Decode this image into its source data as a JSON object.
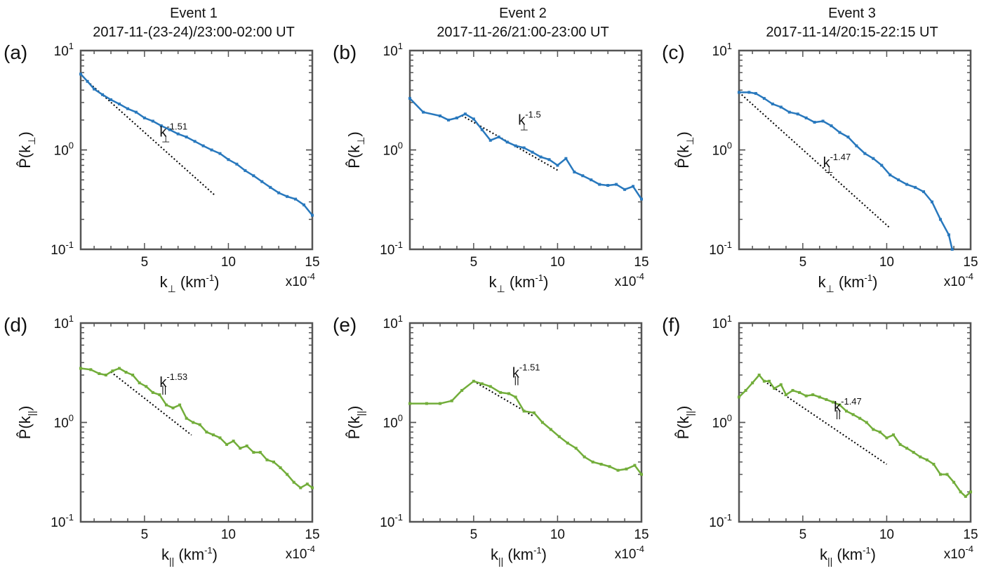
{
  "events": [
    {
      "title": "Event 1",
      "subtitle": "2017-11-(23-24)/23:00-02:00 UT"
    },
    {
      "title": "Event 2",
      "subtitle": "2017-11-26/21:00-23:00 UT"
    },
    {
      "title": "Event 3",
      "subtitle": "2017-11-14/20:15-22:15 UT"
    }
  ],
  "colors": {
    "perp_line": "#2878bd",
    "par_line": "#72ad3a",
    "fit_line": "#000000",
    "axes": "#555555"
  },
  "chart_data": [
    {
      "type": "line",
      "label": "(a)",
      "row": "perp",
      "col": 0,
      "xlabel_base": "k",
      "xlabel_sub": "⊥",
      "xlabel_unit": " (km",
      "xlabel_unit_sup": "-1",
      "xlabel_close": ")",
      "ylabel_base": "P̂(k",
      "ylabel_sub": "⊥",
      "ylabel_close": ")",
      "x_multiplier_base": "x10",
      "x_multiplier_exp": "-4",
      "xlim": [
        1.2,
        15
      ],
      "ylim": [
        0.1,
        10
      ],
      "yscale": "log",
      "xticks": [
        5,
        10,
        15
      ],
      "yticks": [
        {
          "base": "10",
          "exp": "-1",
          "v": 0.1
        },
        {
          "base": "10",
          "exp": "0",
          "v": 1
        },
        {
          "base": "10",
          "exp": "1",
          "v": 10
        }
      ],
      "series": [
        {
          "x": [
            1.2,
            1.6,
            2.0,
            2.5,
            3.0,
            3.5,
            4.0,
            4.5,
            5.0,
            5.5,
            6.0,
            6.5,
            7.0,
            7.5,
            8.0,
            8.5,
            9.0,
            9.5,
            10.0,
            10.5,
            11.0,
            11.5,
            12.0,
            12.5,
            13.0,
            13.5,
            14.0,
            14.5,
            15.0
          ],
          "y": [
            5.8,
            4.9,
            4.1,
            3.6,
            3.2,
            2.9,
            2.6,
            2.4,
            2.1,
            1.95,
            1.75,
            1.6,
            1.45,
            1.35,
            1.22,
            1.1,
            1.0,
            0.92,
            0.8,
            0.72,
            0.62,
            0.55,
            0.48,
            0.42,
            0.37,
            0.34,
            0.32,
            0.28,
            0.22
          ]
        }
      ],
      "fit": {
        "exponent": -1.51,
        "x": [
          1.6,
          9.2
        ],
        "label_base": "k",
        "label_sub": "⊥",
        "label_exp": "-1.51"
      }
    },
    {
      "type": "line",
      "label": "(b)",
      "row": "perp",
      "col": 1,
      "xlabel_base": "k",
      "xlabel_sub": "⊥",
      "xlabel_unit": " (km",
      "xlabel_unit_sup": "-1",
      "xlabel_close": ")",
      "ylabel_base": "P̂(k",
      "ylabel_sub": "⊥",
      "ylabel_close": ")",
      "x_multiplier_base": "x10",
      "x_multiplier_exp": "-4",
      "xlim": [
        1.2,
        15
      ],
      "ylim": [
        0.1,
        10
      ],
      "yscale": "log",
      "xticks": [
        5,
        10,
        15
      ],
      "yticks": [
        {
          "base": "10",
          "exp": "-1",
          "v": 0.1
        },
        {
          "base": "10",
          "exp": "0",
          "v": 1
        },
        {
          "base": "10",
          "exp": "1",
          "v": 10
        }
      ],
      "series": [
        {
          "x": [
            1.2,
            2.0,
            3.0,
            3.5,
            4.0,
            4.5,
            5.0,
            5.5,
            6.0,
            6.5,
            7.0,
            7.5,
            8.0,
            8.5,
            9.0,
            9.5,
            10.0,
            10.5,
            11.0,
            11.5,
            12.0,
            12.5,
            13.0,
            13.5,
            14.0,
            14.5,
            15.0
          ],
          "y": [
            3.3,
            2.4,
            2.2,
            2.0,
            2.1,
            2.3,
            2.05,
            1.6,
            1.25,
            1.35,
            1.2,
            1.1,
            1.05,
            0.95,
            0.85,
            0.8,
            0.7,
            0.82,
            0.6,
            0.55,
            0.5,
            0.45,
            0.44,
            0.45,
            0.4,
            0.43,
            0.32
          ]
        }
      ],
      "fit": {
        "exponent": -1.5,
        "x": [
          4.3,
          10.0
        ],
        "label_base": "k",
        "label_sub": "⊥",
        "label_exp": "-1.5"
      }
    },
    {
      "type": "line",
      "label": "(c)",
      "row": "perp",
      "col": 2,
      "xlabel_base": "k",
      "xlabel_sub": "⊥",
      "xlabel_unit": " (km",
      "xlabel_unit_sup": "-1",
      "xlabel_close": ")",
      "ylabel_base": "P̂(k",
      "ylabel_sub": "⊥",
      "ylabel_close": ")",
      "x_multiplier_base": "x10",
      "x_multiplier_exp": "-4",
      "xlim": [
        1.2,
        15
      ],
      "ylim": [
        0.1,
        10
      ],
      "yscale": "log",
      "xticks": [
        5,
        10,
        15
      ],
      "yticks": [
        {
          "base": "10",
          "exp": "-1",
          "v": 0.1
        },
        {
          "base": "10",
          "exp": "0",
          "v": 1
        },
        {
          "base": "10",
          "exp": "1",
          "v": 10
        }
      ],
      "series": [
        {
          "x": [
            1.2,
            1.8,
            2.2,
            2.7,
            3.2,
            3.7,
            4.2,
            4.7,
            5.2,
            5.7,
            6.2,
            6.7,
            7.2,
            7.7,
            8.2,
            8.7,
            9.2,
            9.7,
            10.2,
            10.7,
            11.2,
            11.7,
            12.2,
            12.7,
            13.2,
            13.7,
            13.9
          ],
          "y": [
            3.8,
            3.8,
            3.7,
            3.3,
            2.9,
            2.7,
            2.4,
            2.3,
            2.1,
            1.9,
            1.95,
            1.75,
            1.5,
            1.35,
            1.1,
            0.92,
            0.82,
            0.7,
            0.56,
            0.5,
            0.45,
            0.42,
            0.38,
            0.3,
            0.2,
            0.14,
            0.1
          ]
        }
      ],
      "fit": {
        "exponent": -1.47,
        "x": [
          1.2,
          10.2
        ],
        "label_base": "k",
        "label_sub": "⊥",
        "label_exp": "-1.47"
      }
    },
    {
      "type": "line",
      "label": "(d)",
      "row": "par",
      "col": 0,
      "xlabel_base": "k",
      "xlabel_sub": "||",
      "xlabel_unit": " (km",
      "xlabel_unit_sup": "-1",
      "xlabel_close": ")",
      "ylabel_base": "P̂(k",
      "ylabel_sub": "||",
      "ylabel_close": ")",
      "x_multiplier_base": "x10",
      "x_multiplier_exp": "-4",
      "xlim": [
        1.2,
        15
      ],
      "ylim": [
        0.1,
        10
      ],
      "yscale": "log",
      "xticks": [
        5,
        10,
        15
      ],
      "yticks": [
        {
          "base": "10",
          "exp": "-1",
          "v": 0.1
        },
        {
          "base": "10",
          "exp": "0",
          "v": 1
        },
        {
          "base": "10",
          "exp": "1",
          "v": 10
        }
      ],
      "series": [
        {
          "x": [
            1.2,
            1.8,
            2.3,
            2.7,
            3.1,
            3.5,
            3.9,
            4.3,
            4.7,
            5.1,
            5.5,
            5.9,
            6.3,
            6.7,
            7.1,
            7.5,
            7.9,
            8.3,
            8.7,
            9.1,
            9.5,
            9.9,
            10.3,
            10.7,
            11.1,
            11.5,
            11.9,
            12.3,
            12.7,
            13.1,
            13.5,
            13.9,
            14.3,
            14.7,
            15.0
          ],
          "y": [
            3.5,
            3.4,
            3.1,
            3.0,
            3.3,
            3.5,
            3.2,
            3.0,
            2.5,
            2.3,
            2.0,
            1.9,
            1.5,
            1.4,
            1.5,
            1.1,
            1.0,
            0.95,
            0.8,
            0.75,
            0.7,
            0.6,
            0.65,
            0.55,
            0.58,
            0.5,
            0.5,
            0.42,
            0.4,
            0.35,
            0.3,
            0.25,
            0.22,
            0.24,
            0.22
          ]
        }
      ],
      "fit": {
        "exponent": -1.53,
        "x": [
          3.0,
          7.8
        ],
        "label_base": "k",
        "label_sub": "||",
        "label_exp": "-1.53"
      }
    },
    {
      "type": "line",
      "label": "(e)",
      "row": "par",
      "col": 1,
      "xlabel_base": "k",
      "xlabel_sub": "||",
      "xlabel_unit": " (km",
      "xlabel_unit_sup": "-1",
      "xlabel_close": ")",
      "ylabel_base": "P̂(k",
      "ylabel_sub": "||",
      "ylabel_close": ")",
      "x_multiplier_base": "x10",
      "x_multiplier_exp": "-4",
      "xlim": [
        1.2,
        15
      ],
      "ylim": [
        0.1,
        10
      ],
      "yscale": "log",
      "xticks": [
        5,
        10,
        15
      ],
      "yticks": [
        {
          "base": "10",
          "exp": "-1",
          "v": 0.1
        },
        {
          "base": "10",
          "exp": "0",
          "v": 1
        },
        {
          "base": "10",
          "exp": "1",
          "v": 10
        }
      ],
      "series": [
        {
          "x": [
            1.2,
            2.2,
            3.0,
            3.7,
            4.3,
            5.0,
            5.5,
            6.0,
            6.6,
            7.1,
            7.5,
            8.0,
            8.6,
            9.1,
            9.6,
            10.1,
            10.6,
            11.1,
            11.6,
            12.1,
            12.6,
            13.1,
            13.6,
            14.1,
            14.6,
            15.0
          ],
          "y": [
            1.55,
            1.55,
            1.55,
            1.65,
            2.1,
            2.6,
            2.45,
            2.3,
            2.0,
            1.95,
            1.8,
            1.3,
            1.25,
            1.0,
            0.85,
            0.72,
            0.62,
            0.55,
            0.45,
            0.4,
            0.38,
            0.36,
            0.33,
            0.34,
            0.37,
            0.3
          ]
        }
      ],
      "fit": {
        "exponent": -1.51,
        "x": [
          5.0,
          8.6
        ],
        "label_base": "k",
        "label_sub": "||",
        "label_exp": "-1.51"
      }
    },
    {
      "type": "line",
      "label": "(f)",
      "row": "par",
      "col": 2,
      "xlabel_base": "k",
      "xlabel_sub": "||",
      "xlabel_unit": " (km",
      "xlabel_unit_sup": "-1",
      "xlabel_close": ")",
      "ylabel_base": "P̂(k",
      "ylabel_sub": "||",
      "ylabel_close": ")",
      "x_multiplier_base": "x10",
      "x_multiplier_exp": "-4",
      "xlim": [
        1.2,
        15
      ],
      "ylim": [
        0.1,
        10
      ],
      "yscale": "log",
      "xticks": [
        5,
        10,
        15
      ],
      "yticks": [
        {
          "base": "10",
          "exp": "-1",
          "v": 0.1
        },
        {
          "base": "10",
          "exp": "0",
          "v": 1
        },
        {
          "base": "10",
          "exp": "1",
          "v": 10
        }
      ],
      "series": [
        {
          "x": [
            1.2,
            1.6,
            2.0,
            2.4,
            2.7,
            3.0,
            3.3,
            3.7,
            4.0,
            4.4,
            4.8,
            5.2,
            5.6,
            6.0,
            6.4,
            6.8,
            7.2,
            7.6,
            8.0,
            8.4,
            8.8,
            9.2,
            9.6,
            10.0,
            10.4,
            10.8,
            11.2,
            11.6,
            12.0,
            12.4,
            12.8,
            13.2,
            13.6,
            14.0,
            14.4,
            14.7,
            15.0
          ],
          "y": [
            1.8,
            2.1,
            2.5,
            3.0,
            2.6,
            2.6,
            2.2,
            2.4,
            1.9,
            2.1,
            2.0,
            1.85,
            1.9,
            1.8,
            1.7,
            1.6,
            1.5,
            1.3,
            1.2,
            1.1,
            1.0,
            0.85,
            0.8,
            0.7,
            0.75,
            0.6,
            0.55,
            0.5,
            0.45,
            0.42,
            0.38,
            0.3,
            0.3,
            0.25,
            0.2,
            0.18,
            0.2
          ]
        }
      ],
      "fit": {
        "exponent": -1.47,
        "x": [
          2.7,
          10.0
        ],
        "label_base": "k",
        "label_sub": "||",
        "label_exp": "-1.47"
      }
    }
  ]
}
